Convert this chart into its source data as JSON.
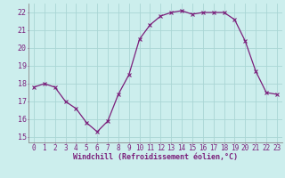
{
  "x": [
    0,
    1,
    2,
    3,
    4,
    5,
    6,
    7,
    8,
    9,
    10,
    11,
    12,
    13,
    14,
    15,
    16,
    17,
    18,
    19,
    20,
    21,
    22,
    23
  ],
  "y": [
    17.8,
    18.0,
    17.8,
    17.0,
    16.6,
    15.8,
    15.3,
    15.9,
    17.4,
    18.5,
    20.5,
    21.3,
    21.8,
    22.0,
    22.1,
    21.9,
    22.0,
    22.0,
    22.0,
    21.6,
    20.4,
    18.7,
    17.5,
    17.4
  ],
  "line_color": "#7b1f7b",
  "marker": "x",
  "bg_color": "#cceeed",
  "grid_color": "#aad6d4",
  "xlabel": "Windchill (Refroidissement éolien,°C)",
  "xlim": [
    -0.5,
    23.5
  ],
  "ylim": [
    14.7,
    22.5
  ],
  "yticks": [
    15,
    16,
    17,
    18,
    19,
    20,
    21,
    22
  ],
  "xticks": [
    0,
    1,
    2,
    3,
    4,
    5,
    6,
    7,
    8,
    9,
    10,
    11,
    12,
    13,
    14,
    15,
    16,
    17,
    18,
    19,
    20,
    21,
    22,
    23
  ],
  "tick_color": "#7b1f7b",
  "label_color": "#7b1f7b",
  "spine_color": "#888888",
  "tick_fontsize": 5.5,
  "xlabel_fontsize": 6.0
}
